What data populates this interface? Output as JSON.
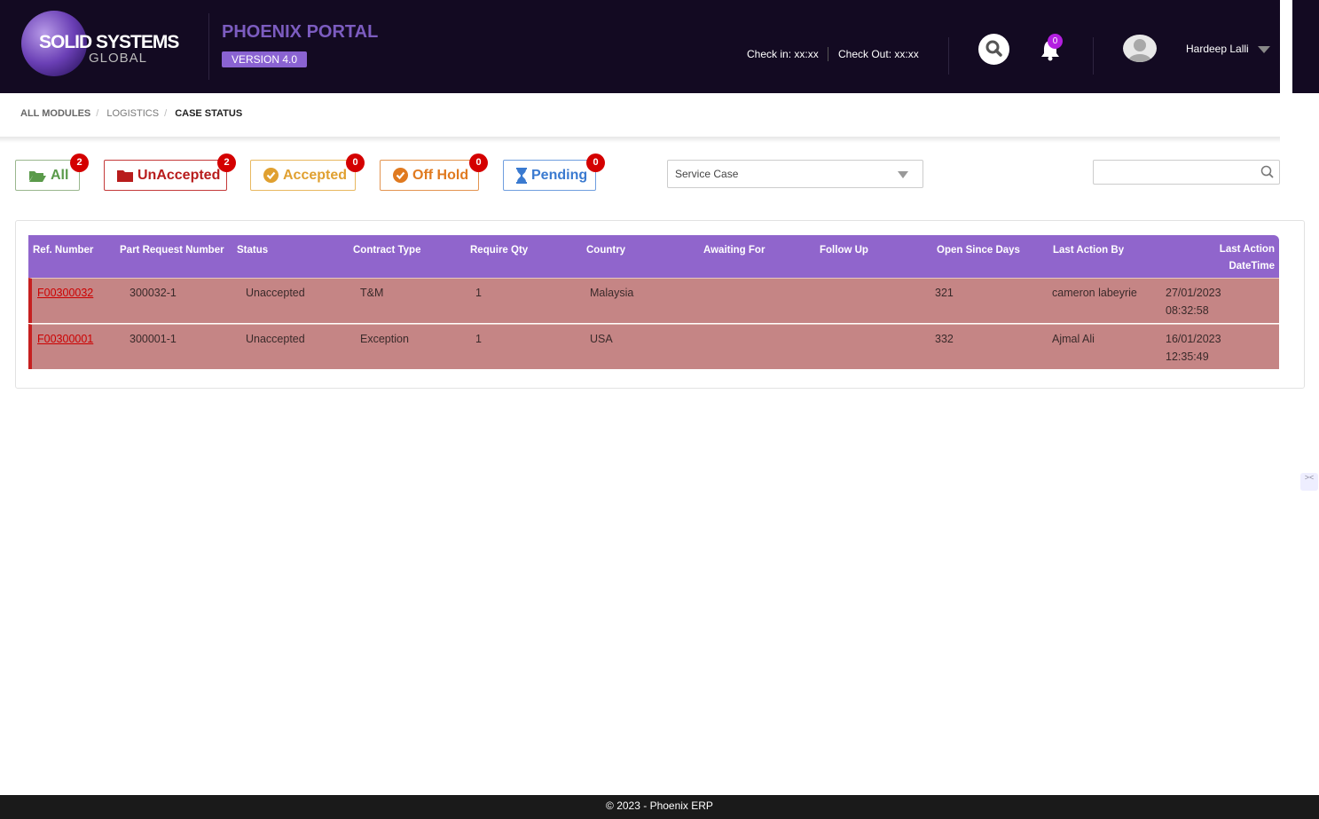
{
  "header": {
    "logo_text": "SOLID SYSTEMS",
    "logo_sub": "GLOBAL",
    "portal": "PHOENIX PORTAL",
    "version": "VERSION 4.0",
    "check_in": "Check in: xx:xx",
    "check_out": "Check Out: xx:xx",
    "notifications": "0",
    "user": "Hardeep Lalli"
  },
  "breadcrumb": [
    "ALL MODULES",
    "LOGISTICS",
    "CASE STATUS"
  ],
  "filters": [
    {
      "label": "All",
      "count": "2",
      "color": "#5a9a4a",
      "icon": "folder-open-icon"
    },
    {
      "label": "UnAccepted",
      "count": "2",
      "color": "#b81c1c",
      "icon": "folder-icon"
    },
    {
      "label": "Accepted",
      "count": "0",
      "color": "#e0a030",
      "icon": "check-circle-icon"
    },
    {
      "label": "Off Hold",
      "count": "0",
      "color": "#e07a20",
      "icon": "check-circle-icon"
    },
    {
      "label": "Pending",
      "count": "0",
      "color": "#3a7ad0",
      "icon": "hourglass-icon"
    }
  ],
  "case_type": {
    "selected": "Service Case"
  },
  "search": {
    "value": ""
  },
  "table": {
    "columns": [
      "Ref. Number",
      "Part Request Number",
      "Status",
      "Contract Type",
      "Require Qty",
      "Country",
      "Awaiting For",
      "Follow Up",
      "Open Since Days",
      "Last Action By",
      "Last Action DateTime"
    ],
    "rows": [
      [
        "F00300032",
        "300032-1",
        "Unaccepted",
        "T&M",
        "1",
        "Malaysia",
        "",
        "",
        "321",
        "cameron labeyrie",
        "27/01/2023 08:32:58"
      ],
      [
        "F00300001",
        "300001-1",
        "Unaccepted",
        "Exception",
        "1",
        "USA",
        "",
        "",
        "332",
        "Ajmal Ali",
        "16/01/2023 12:35:49"
      ]
    ]
  },
  "footer": "© 2023 - Phoenix ERP"
}
